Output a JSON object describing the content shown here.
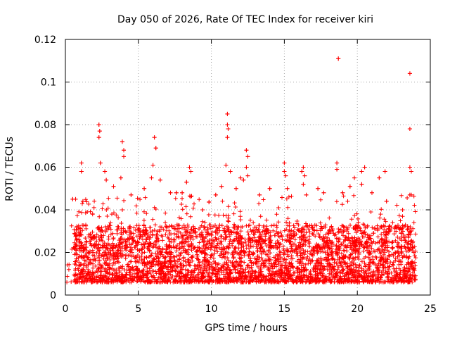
{
  "chart_data": {
    "type": "scatter",
    "title": "Day 050 of 2026, Rate Of TEC Index for receiver kiri",
    "xlabel": "GPS time / hours",
    "ylabel": "ROTI / TECUs",
    "xlim": [
      0,
      25
    ],
    "ylim": [
      0,
      0.12
    ],
    "x_ticks": [
      0,
      5,
      10,
      15,
      20,
      25
    ],
    "x_tick_labels": [
      "0",
      "5",
      "10",
      "15",
      "20",
      "25"
    ],
    "y_ticks": [
      0,
      0.02,
      0.04,
      0.06,
      0.08,
      0.1,
      0.12
    ],
    "y_tick_labels": [
      "0",
      "0.02",
      "0.04",
      "0.06",
      "0.08",
      "0.1",
      "0.12"
    ],
    "grid": true,
    "marker": "+",
    "color": "#ff0000",
    "dense_band": {
      "x_range": [
        0,
        24
      ],
      "sparse_before": 0.6,
      "typical_range": [
        0.003,
        0.03
      ],
      "spike_range": [
        0.03,
        0.055
      ],
      "description_points_per_hour": 700
    },
    "outliers": [
      {
        "x": 0.5,
        "y": 0.045
      },
      {
        "x": 0.7,
        "y": 0.045
      },
      {
        "x": 1.1,
        "y": 0.062
      },
      {
        "x": 1.1,
        "y": 0.058
      },
      {
        "x": 1.2,
        "y": 0.044
      },
      {
        "x": 1.5,
        "y": 0.039
      },
      {
        "x": 2.3,
        "y": 0.08
      },
      {
        "x": 2.35,
        "y": 0.077
      },
      {
        "x": 2.3,
        "y": 0.074
      },
      {
        "x": 2.4,
        "y": 0.062
      },
      {
        "x": 2.7,
        "y": 0.058
      },
      {
        "x": 2.8,
        "y": 0.054
      },
      {
        "x": 3.3,
        "y": 0.051
      },
      {
        "x": 3.9,
        "y": 0.072
      },
      {
        "x": 4.0,
        "y": 0.068
      },
      {
        "x": 4.0,
        "y": 0.065
      },
      {
        "x": 3.8,
        "y": 0.055
      },
      {
        "x": 4.5,
        "y": 0.047
      },
      {
        "x": 5.4,
        "y": 0.05
      },
      {
        "x": 5.9,
        "y": 0.055
      },
      {
        "x": 6.0,
        "y": 0.061
      },
      {
        "x": 6.1,
        "y": 0.074
      },
      {
        "x": 6.2,
        "y": 0.069
      },
      {
        "x": 6.5,
        "y": 0.054
      },
      {
        "x": 7.2,
        "y": 0.048
      },
      {
        "x": 7.6,
        "y": 0.048
      },
      {
        "x": 8.0,
        "y": 0.048
      },
      {
        "x": 8.5,
        "y": 0.06
      },
      {
        "x": 8.6,
        "y": 0.058
      },
      {
        "x": 8.3,
        "y": 0.053
      },
      {
        "x": 9.4,
        "y": 0.04
      },
      {
        "x": 10.3,
        "y": 0.047
      },
      {
        "x": 10.7,
        "y": 0.051
      },
      {
        "x": 11.1,
        "y": 0.085
      },
      {
        "x": 11.1,
        "y": 0.08
      },
      {
        "x": 11.15,
        "y": 0.078
      },
      {
        "x": 11.1,
        "y": 0.074
      },
      {
        "x": 11.0,
        "y": 0.061
      },
      {
        "x": 11.3,
        "y": 0.058
      },
      {
        "x": 11.7,
        "y": 0.05
      },
      {
        "x": 12.0,
        "y": 0.055
      },
      {
        "x": 12.2,
        "y": 0.054
      },
      {
        "x": 12.4,
        "y": 0.068
      },
      {
        "x": 12.5,
        "y": 0.065
      },
      {
        "x": 12.4,
        "y": 0.06
      },
      {
        "x": 12.5,
        "y": 0.056
      },
      {
        "x": 13.3,
        "y": 0.047
      },
      {
        "x": 14.0,
        "y": 0.05
      },
      {
        "x": 14.6,
        "y": 0.041
      },
      {
        "x": 15.0,
        "y": 0.062
      },
      {
        "x": 15.0,
        "y": 0.058
      },
      {
        "x": 15.1,
        "y": 0.056
      },
      {
        "x": 15.2,
        "y": 0.05
      },
      {
        "x": 16.2,
        "y": 0.058
      },
      {
        "x": 16.3,
        "y": 0.06
      },
      {
        "x": 16.4,
        "y": 0.056
      },
      {
        "x": 16.3,
        "y": 0.052
      },
      {
        "x": 16.5,
        "y": 0.047
      },
      {
        "x": 17.3,
        "y": 0.05
      },
      {
        "x": 17.7,
        "y": 0.048
      },
      {
        "x": 18.6,
        "y": 0.062
      },
      {
        "x": 18.6,
        "y": 0.059
      },
      {
        "x": 18.7,
        "y": 0.111
      },
      {
        "x": 19.0,
        "y": 0.048
      },
      {
        "x": 19.5,
        "y": 0.051
      },
      {
        "x": 19.8,
        "y": 0.055
      },
      {
        "x": 20.3,
        "y": 0.058
      },
      {
        "x": 20.5,
        "y": 0.06
      },
      {
        "x": 20.3,
        "y": 0.052
      },
      {
        "x": 21.0,
        "y": 0.048
      },
      {
        "x": 21.5,
        "y": 0.055
      },
      {
        "x": 21.9,
        "y": 0.058
      },
      {
        "x": 22.0,
        "y": 0.044
      },
      {
        "x": 23.1,
        "y": 0.04
      },
      {
        "x": 23.6,
        "y": 0.104
      },
      {
        "x": 23.6,
        "y": 0.078
      },
      {
        "x": 23.6,
        "y": 0.06
      },
      {
        "x": 23.7,
        "y": 0.058
      },
      {
        "x": 23.6,
        "y": 0.047
      },
      {
        "x": 23.7,
        "y": 0.047
      }
    ]
  }
}
